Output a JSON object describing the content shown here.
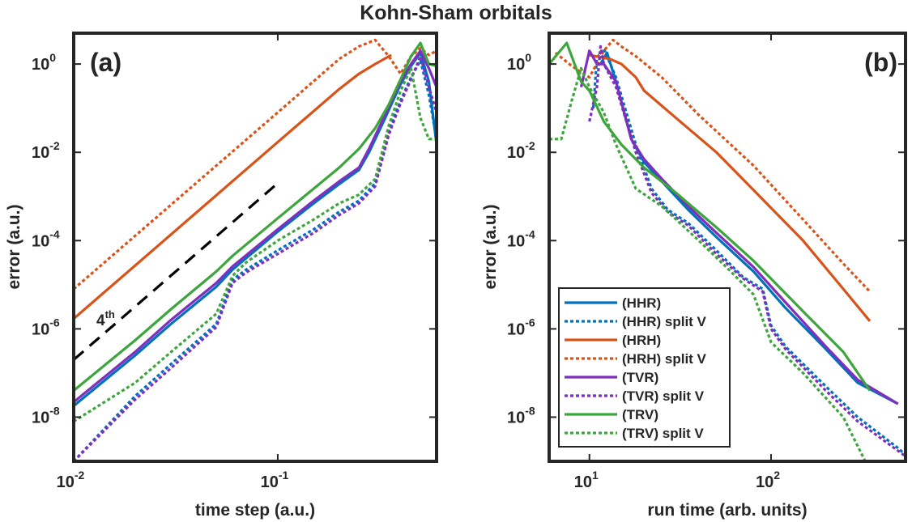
{
  "figure_title": "Kohn-Sham orbitals",
  "colors": {
    "HHR": "#0072BD",
    "HRH": "#D95319",
    "TVR": "#7E2FBE",
    "TRV": "#3CA63C",
    "reference": "#000000",
    "axes": "#262626"
  },
  "chart_data": [
    {
      "type": "line",
      "panel_label": "(a)",
      "xlabel": "time step (a.u.)",
      "ylabel": "error (a.u.)",
      "xscale": "log",
      "yscale": "log",
      "xlim": [
        0.01,
        0.6
      ],
      "ylim": [
        1e-09,
        5
      ],
      "x_ticks": [
        {
          "value": 0.01,
          "base": "10",
          "exp": "-2"
        },
        {
          "value": 0.1,
          "base": "10",
          "exp": "-1"
        }
      ],
      "y_ticks": [
        {
          "value": 1e-08,
          "base": "10",
          "exp": "-8"
        },
        {
          "value": 1e-06,
          "base": "10",
          "exp": "-6"
        },
        {
          "value": 0.0001,
          "base": "10",
          "exp": "-4"
        },
        {
          "value": 0.01,
          "base": "10",
          "exp": "-2"
        },
        {
          "value": 1,
          "base": "10",
          "exp": "0"
        }
      ],
      "annotation": {
        "text": "4",
        "sup": "th",
        "x": 0.0115,
        "y": 2.5e-06
      },
      "reference_line": {
        "name": "4th order",
        "x": [
          0.01,
          0.1
        ],
        "y": [
          2e-07,
          0.002
        ]
      },
      "series": [
        {
          "name": "(HHR)",
          "key": "HHR",
          "style": "solid",
          "x": [
            0.01,
            0.02,
            0.03,
            0.05,
            0.06,
            0.1,
            0.15,
            0.2,
            0.25,
            0.28,
            0.33,
            0.4,
            0.45,
            0.5,
            0.55,
            0.6
          ],
          "y": [
            1.8e-08,
            2.5e-07,
            1.3e-06,
            9e-06,
            2.2e-05,
            0.00016,
            0.0007,
            0.0019,
            0.004,
            0.01,
            0.05,
            0.35,
            0.9,
            1.8,
            0.4,
            0.015
          ]
        },
        {
          "name": "(HHR) split V",
          "key": "HHR",
          "style": "dotted",
          "x": [
            0.01,
            0.02,
            0.03,
            0.05,
            0.06,
            0.07,
            0.1,
            0.15,
            0.2,
            0.25,
            0.3,
            0.35,
            0.4,
            0.45,
            0.5,
            0.55,
            0.6
          ],
          "y": [
            1e-09,
            3e-08,
            1.6e-07,
            1.3e-06,
            1.3e-05,
            2.2e-05,
            6e-05,
            0.00018,
            0.00045,
            0.0008,
            0.002,
            0.03,
            0.15,
            0.5,
            1.2,
            0.2,
            0.02
          ]
        },
        {
          "name": "(HRH)",
          "key": "HRH",
          "style": "solid",
          "x": [
            0.01,
            0.1,
            0.2,
            0.25,
            0.3,
            0.36
          ],
          "y": [
            1.7e-06,
            0.017,
            0.27,
            0.6,
            1.0,
            1.6
          ]
        },
        {
          "name": "(HRH) split V",
          "key": "HRH",
          "style": "dotted",
          "x": [
            0.01,
            0.1,
            0.2,
            0.25,
            0.3,
            0.35,
            0.4,
            0.45,
            0.5,
            0.55,
            0.6
          ],
          "y": [
            8e-06,
            0.08,
            1.3,
            2.5,
            3.5,
            1.5,
            0.6,
            1.5,
            2.3,
            1.6,
            2.0
          ]
        },
        {
          "name": "(TVR)",
          "key": "TVR",
          "style": "solid",
          "x": [
            0.01,
            0.02,
            0.03,
            0.05,
            0.06,
            0.1,
            0.15,
            0.2,
            0.25,
            0.28,
            0.33,
            0.4,
            0.45,
            0.5,
            0.55,
            0.6
          ],
          "y": [
            2.2e-08,
            3e-07,
            1.6e-06,
            1.1e-05,
            2.6e-05,
            0.00018,
            0.0008,
            0.0022,
            0.0045,
            0.012,
            0.06,
            0.4,
            1.0,
            2.0,
            0.8,
            0.3
          ]
        },
        {
          "name": "(TVR) split V",
          "key": "TVR",
          "style": "dotted",
          "x": [
            0.01,
            0.02,
            0.03,
            0.05,
            0.06,
            0.07,
            0.1,
            0.15,
            0.2,
            0.25,
            0.3,
            0.35,
            0.4,
            0.45,
            0.5,
            0.55,
            0.6
          ],
          "y": [
            1e-09,
            2.5e-08,
            1.3e-07,
            1.1e-06,
            1.1e-05,
            1.9e-05,
            5e-05,
            0.00015,
            0.00038,
            0.0007,
            0.0017,
            0.025,
            0.13,
            0.45,
            1.5,
            0.3,
            0.08
          ]
        },
        {
          "name": "(TRV)",
          "key": "TRV",
          "style": "solid",
          "x": [
            0.01,
            0.02,
            0.03,
            0.05,
            0.06,
            0.1,
            0.15,
            0.2,
            0.25,
            0.3,
            0.35,
            0.4,
            0.45,
            0.5,
            0.55,
            0.6
          ],
          "y": [
            4e-08,
            5.5e-07,
            2.8e-06,
            2e-05,
            4.5e-05,
            0.00032,
            0.0015,
            0.0045,
            0.012,
            0.035,
            0.12,
            0.45,
            1.5,
            3.0,
            1.0,
            0.9
          ]
        },
        {
          "name": "(TRV) split V",
          "key": "TRV",
          "style": "dotted",
          "x": [
            0.01,
            0.02,
            0.03,
            0.05,
            0.06,
            0.07,
            0.1,
            0.15,
            0.2,
            0.25,
            0.3,
            0.35,
            0.4,
            0.45,
            0.5,
            0.55,
            0.6
          ],
          "y": [
            8e-09,
            6e-08,
            3e-07,
            2.2e-06,
            1.6e-05,
            3.2e-05,
            0.0001,
            0.0003,
            0.0007,
            0.0011,
            0.0025,
            0.04,
            0.25,
            0.8,
            0.06,
            0.02,
            0.02
          ]
        }
      ]
    },
    {
      "type": "line",
      "panel_label": "(b)",
      "xlabel": "run time (arb. units)",
      "ylabel": "error (a.u.)",
      "xscale": "log",
      "yscale": "log",
      "xlim": [
        6,
        550
      ],
      "ylim": [
        1e-09,
        5
      ],
      "x_ticks": [
        {
          "value": 10,
          "base": "10",
          "exp": "1"
        },
        {
          "value": 100,
          "base": "10",
          "exp": "2"
        }
      ],
      "y_ticks": [
        {
          "value": 1e-08,
          "base": "10",
          "exp": "-8"
        },
        {
          "value": 1e-06,
          "base": "10",
          "exp": "-6"
        },
        {
          "value": 0.0001,
          "base": "10",
          "exp": "-4"
        },
        {
          "value": 0.01,
          "base": "10",
          "exp": "-2"
        },
        {
          "value": 1,
          "base": "10",
          "exp": "0"
        }
      ],
      "legend": {
        "location": "bottom-left",
        "entries": [
          "(HHR)",
          "(HHR) split V",
          "(HRH)",
          "(HRH) split V",
          "(TVR)",
          "(TVR) split V",
          "(TRV)",
          "(TRV) split V"
        ]
      },
      "series": [
        {
          "name": "(HHR)",
          "key": "HHR",
          "style": "solid",
          "x": [
            11.5,
            12.5,
            14,
            17,
            20,
            25,
            35,
            50,
            80,
            120,
            200,
            300,
            500
          ],
          "y": [
            1.0,
            1.8,
            0.4,
            0.02,
            0.006,
            0.0022,
            0.0005,
            0.00012,
            2e-05,
            3e-06,
            3.5e-07,
            6e-08,
            2e-08
          ]
        },
        {
          "name": "(HHR) split V",
          "key": "HHR",
          "style": "dotted",
          "x": [
            10.5,
            11,
            12,
            14,
            18,
            22,
            27,
            35,
            50,
            70,
            90,
            100,
            120,
            200,
            300,
            500,
            600
          ],
          "y": [
            0.1,
            1.4,
            2.2,
            0.5,
            0.015,
            0.0015,
            0.0005,
            0.00025,
            6e-05,
            1.5e-05,
            8e-06,
            1.2e-06,
            4e-07,
            5e-08,
            1e-08,
            2e-09,
            1e-09
          ]
        },
        {
          "name": "(HRH)",
          "key": "HRH",
          "style": "solid",
          "x": [
            10,
            13,
            15,
            18,
            20,
            30,
            50,
            80,
            150,
            250,
            350
          ],
          "y": [
            1.6,
            1.3,
            1.0,
            0.5,
            0.25,
            0.06,
            0.01,
            0.0014,
            0.0001,
            8e-06,
            1.5e-06
          ]
        },
        {
          "name": "(HRH) split V",
          "key": "HRH",
          "style": "dotted",
          "x": [
            6.5,
            8,
            10,
            12,
            13.5,
            15,
            18,
            25,
            40,
            80,
            150,
            250,
            350
          ],
          "y": [
            1.8,
            0.9,
            0.5,
            2.0,
            3.5,
            2.5,
            1.5,
            0.5,
            0.07,
            0.005,
            0.0003,
            3e-05,
            7e-06
          ]
        },
        {
          "name": "(TVR)",
          "key": "TVR",
          "style": "solid",
          "x": [
            9,
            10,
            11,
            12,
            14,
            17,
            20,
            25,
            35,
            50,
            80,
            120,
            200,
            300,
            500
          ],
          "y": [
            0.3,
            2.0,
            1.0,
            1.0,
            0.4,
            0.02,
            0.007,
            0.0025,
            0.0006,
            0.00015,
            2.5e-05,
            4e-06,
            4e-07,
            7e-08,
            2e-08
          ]
        },
        {
          "name": "(TVR) split V",
          "key": "TVR",
          "style": "dotted",
          "x": [
            10,
            11,
            11.5,
            12,
            14,
            18,
            22,
            27,
            35,
            50,
            70,
            90,
            100,
            120,
            200,
            300,
            600
          ],
          "y": [
            0.05,
            0.3,
            2.5,
            1.0,
            0.3,
            0.01,
            0.0012,
            0.00045,
            0.00022,
            5e-05,
            1.4e-05,
            7e-06,
            1e-06,
            3.5e-07,
            4e-08,
            8e-09,
            1e-09
          ]
        },
        {
          "name": "(TRV)",
          "key": "TRV",
          "style": "solid",
          "x": [
            6,
            7.5,
            9,
            10,
            12,
            15,
            20,
            30,
            50,
            80,
            150,
            250,
            350
          ],
          "y": [
            1.0,
            3.0,
            0.4,
            0.25,
            0.05,
            0.015,
            0.0045,
            0.0012,
            0.0002,
            3.5e-05,
            2.5e-06,
            3e-07,
            4e-08
          ]
        },
        {
          "name": "(TRV) split V",
          "key": "TRV",
          "style": "dotted",
          "x": [
            6,
            7,
            8,
            9,
            10,
            12,
            14,
            18,
            25,
            40,
            60,
            80,
            100,
            150,
            250,
            330
          ],
          "y": [
            0.02,
            0.02,
            0.15,
            0.8,
            0.3,
            0.08,
            0.015,
            0.0015,
            0.0006,
            0.0001,
            2e-05,
            6e-06,
            5e-07,
            1e-07,
            1e-08,
            1e-09
          ]
        }
      ]
    }
  ]
}
